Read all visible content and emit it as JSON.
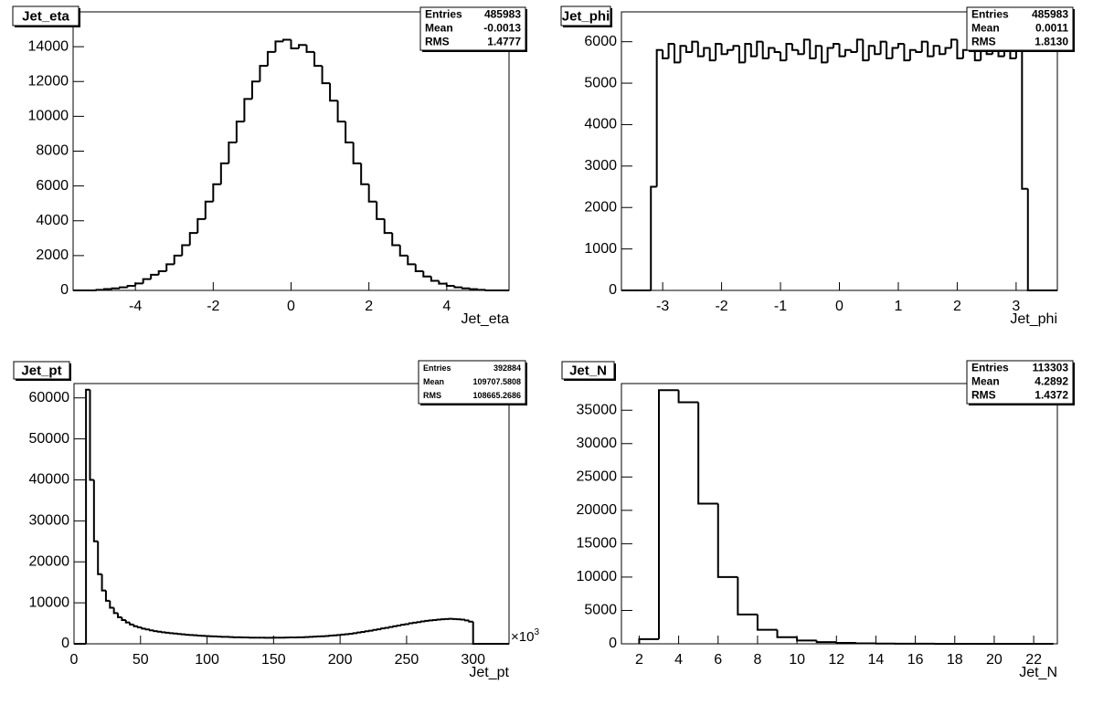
{
  "chart_data": [
    {
      "type": "histogram",
      "title": "Jet_eta",
      "x_label": "Jet_eta",
      "color": "#000000",
      "xlim": [
        -5.6,
        5.6
      ],
      "ylim": [
        0,
        16000
      ],
      "xticks": [
        -4,
        -2,
        0,
        2,
        4
      ],
      "yticks": [
        0,
        2000,
        4000,
        6000,
        8000,
        10000,
        12000,
        14000
      ],
      "bins": [
        -5.6,
        -5.4,
        -5.2,
        -5.0,
        -4.8,
        -4.6,
        -4.4,
        -4.2,
        -4.0,
        -3.8,
        -3.6,
        -3.4,
        -3.2,
        -3.0,
        -2.8,
        -2.6,
        -2.4,
        -2.2,
        -2.0,
        -1.8,
        -1.6,
        -1.4,
        -1.2,
        -1.0,
        -0.8,
        -0.6,
        -0.4,
        -0.2,
        0,
        0.2,
        0.4,
        0.6,
        0.8,
        1.0,
        1.2,
        1.4,
        1.6,
        1.8,
        2.0,
        2.2,
        2.4,
        2.6,
        2.8,
        3.0,
        3.2,
        3.4,
        3.6,
        3.8,
        4.0,
        4.2,
        4.4,
        4.6,
        4.8,
        5.0,
        5.2,
        5.4,
        5.6
      ],
      "values": [
        0,
        0,
        0,
        30,
        80,
        120,
        180,
        260,
        400,
        650,
        900,
        1100,
        1500,
        2000,
        2600,
        3300,
        4100,
        5100,
        6100,
        7300,
        8500,
        9700,
        11000,
        12000,
        12900,
        13700,
        14300,
        14400,
        13900,
        14100,
        13700,
        12900,
        11900,
        10900,
        9700,
        8500,
        7300,
        6100,
        5100,
        4100,
        3300,
        2600,
        2000,
        1500,
        1100,
        800,
        550,
        390,
        260,
        180,
        120,
        70,
        30,
        0,
        0,
        0
      ],
      "stats": [
        {
          "label": "Entries",
          "value": "485983"
        },
        {
          "label": "Mean",
          "value": "-0.0013"
        },
        {
          "label": "RMS",
          "value": "1.4777"
        }
      ]
    },
    {
      "type": "histogram",
      "title": "Jet_phi",
      "x_label": "Jet_phi",
      "color": "#000000",
      "xlim": [
        -3.7,
        3.7
      ],
      "ylim": [
        0,
        6720
      ],
      "xticks": [
        -3,
        -2,
        -1,
        0,
        1,
        2,
        3
      ],
      "yticks": [
        0,
        1000,
        2000,
        3000,
        4000,
        5000,
        6000
      ],
      "bins": [
        -3.7,
        -3.6,
        -3.5,
        -3.4,
        -3.3,
        -3.2,
        -3.1,
        -3.0,
        -2.9,
        -2.8,
        -2.7,
        -2.6,
        -2.5,
        -2.4,
        -2.3,
        -2.2,
        -2.1,
        -2.0,
        -1.9,
        -1.8,
        -1.7,
        -1.6,
        -1.5,
        -1.4,
        -1.3,
        -1.2,
        -1.1,
        -1.0,
        -0.9,
        -0.8,
        -0.7,
        -0.6,
        -0.5,
        -0.4,
        -0.3,
        -0.2,
        -0.1,
        0,
        0.1,
        0.2,
        0.3,
        0.4,
        0.5,
        0.6,
        0.7,
        0.8,
        0.9,
        1.0,
        1.1,
        1.2,
        1.3,
        1.4,
        1.5,
        1.6,
        1.7,
        1.8,
        1.9,
        2.0,
        2.1,
        2.2,
        2.3,
        2.4,
        2.5,
        2.6,
        2.7,
        2.8,
        2.9,
        3.0,
        3.1,
        3.2,
        3.3,
        3.4,
        3.5,
        3.6,
        3.7
      ],
      "values": [
        0,
        0,
        0,
        0,
        0,
        2500,
        5800,
        5600,
        5950,
        5500,
        5900,
        5750,
        6000,
        5650,
        5850,
        5550,
        5950,
        5700,
        5800,
        5900,
        5500,
        5950,
        5650,
        6000,
        5600,
        5850,
        5750,
        5550,
        5950,
        5800,
        5700,
        6050,
        5600,
        5900,
        5500,
        5850,
        5950,
        5650,
        5800,
        5750,
        6050,
        5550,
        5900,
        5700,
        6000,
        5600,
        5850,
        5950,
        5550,
        5800,
        5750,
        6000,
        5650,
        5900,
        5700,
        5850,
        6050,
        5600,
        5800,
        5950,
        5550,
        5900,
        5700,
        6050,
        5650,
        5850,
        5600,
        5950,
        2450,
        0,
        0,
        0,
        0,
        0
      ],
      "stats": [
        {
          "label": "Entries",
          "value": "485983"
        },
        {
          "label": "Mean",
          "value": "0.0011"
        },
        {
          "label": "RMS",
          "value": "1.8130"
        }
      ]
    },
    {
      "type": "histogram",
      "title": "Jet_pt",
      "x_label": "Jet_pt",
      "x_multiplier": "×10",
      "x_multiplier_power": "3",
      "color": "#000000",
      "xlim": [
        0,
        327
      ],
      "ylim": [
        0,
        63500
      ],
      "xticks": [
        0,
        50,
        100,
        150,
        200,
        250,
        300
      ],
      "yticks": [
        0,
        10000,
        20000,
        30000,
        40000,
        50000,
        60000
      ],
      "bins": [
        0,
        3,
        6,
        9,
        12,
        15,
        18,
        21,
        24,
        27,
        30,
        33,
        36,
        39,
        42,
        45,
        48,
        51,
        54,
        57,
        60,
        63,
        66,
        69,
        72,
        75,
        78,
        81,
        84,
        87,
        90,
        93,
        96,
        99,
        102,
        105,
        108,
        111,
        114,
        117,
        120,
        123,
        126,
        129,
        132,
        135,
        138,
        141,
        144,
        147,
        150,
        153,
        156,
        159,
        162,
        165,
        168,
        171,
        174,
        177,
        180,
        183,
        186,
        189,
        192,
        195,
        198,
        201,
        204,
        207,
        210,
        213,
        216,
        219,
        222,
        225,
        228,
        231,
        234,
        237,
        240,
        243,
        246,
        249,
        252,
        255,
        258,
        261,
        264,
        267,
        270,
        273,
        276,
        279,
        282,
        285,
        288,
        291,
        294,
        297,
        300,
        303,
        306,
        309,
        312,
        315,
        318,
        321,
        324,
        327
      ],
      "values": [
        0,
        0,
        0,
        62000,
        40000,
        25000,
        17000,
        13000,
        10500,
        8800,
        7500,
        6500,
        5800,
        5200,
        4700,
        4300,
        4000,
        3700,
        3500,
        3300,
        3100,
        2950,
        2800,
        2700,
        2600,
        2500,
        2400,
        2300,
        2200,
        2150,
        2100,
        2000,
        1950,
        1900,
        1850,
        1800,
        1750,
        1700,
        1700,
        1650,
        1600,
        1600,
        1550,
        1550,
        1500,
        1500,
        1500,
        1500,
        1480,
        1480,
        1500,
        1500,
        1500,
        1520,
        1550,
        1550,
        1600,
        1600,
        1650,
        1700,
        1750,
        1800,
        1850,
        1900,
        2000,
        2050,
        2150,
        2250,
        2350,
        2450,
        2600,
        2750,
        2900,
        3050,
        3200,
        3400,
        3550,
        3750,
        3900,
        4100,
        4300,
        4450,
        4650,
        4800,
        5000,
        5150,
        5300,
        5450,
        5600,
        5700,
        5800,
        5900,
        6000,
        6050,
        6100,
        6050,
        6000,
        5900,
        5700,
        5400,
        0,
        0,
        0,
        0,
        0,
        0,
        0,
        0,
        0
      ],
      "stats": [
        {
          "label": "Entries",
          "value": "392884"
        },
        {
          "label": "Mean",
          "value": "109707.5808"
        },
        {
          "label": "RMS",
          "value": "108665.2686"
        }
      ]
    },
    {
      "type": "histogram",
      "title": "Jet_N",
      "x_label": "Jet_N",
      "color": "#000000",
      "xlim": [
        1.1,
        23.2
      ],
      "ylim": [
        0,
        39000
      ],
      "xticks": [
        2,
        4,
        6,
        8,
        10,
        12,
        14,
        16,
        18,
        20,
        22
      ],
      "yticks": [
        0,
        5000,
        10000,
        15000,
        20000,
        25000,
        30000,
        35000
      ],
      "bins": [
        2,
        3,
        4,
        5,
        6,
        7,
        8,
        9,
        10,
        11,
        12,
        13,
        14,
        15,
        16,
        17,
        18,
        19,
        20,
        21,
        22,
        23
      ],
      "values": [
        700,
        38000,
        36200,
        21000,
        10000,
        4400,
        2100,
        1000,
        500,
        250,
        130,
        70,
        40,
        20,
        10,
        5,
        0,
        0,
        0,
        0,
        0
      ],
      "stats": [
        {
          "label": "Entries",
          "value": "113303"
        },
        {
          "label": "Mean",
          "value": "4.2892"
        },
        {
          "label": "RMS",
          "value": "1.4372"
        }
      ]
    }
  ]
}
